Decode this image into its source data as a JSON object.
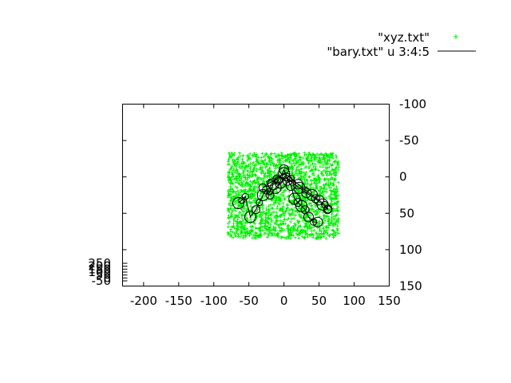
{
  "chart_data": {
    "type": "scatter",
    "title": "",
    "xlabel": "",
    "ylabel": "",
    "xlim": [
      -230,
      150
    ],
    "ylim": [
      -100,
      150
    ],
    "y_axis_side": "right",
    "y_reversed": true,
    "grid": false,
    "legend_position": "top-right",
    "x_ticks": [
      {
        "value": -200,
        "label": "-200"
      },
      {
        "value": -150,
        "label": "-150"
      },
      {
        "value": -100,
        "label": "-100"
      },
      {
        "value": -50,
        "label": "-50"
      },
      {
        "value": 0,
        "label": "0"
      },
      {
        "value": 50,
        "label": "50"
      },
      {
        "value": 100,
        "label": "100"
      },
      {
        "value": 150,
        "label": "150"
      }
    ],
    "y_ticks": [
      {
        "value": -100,
        "label": "-100"
      },
      {
        "value": -50,
        "label": "-50"
      },
      {
        "value": 0,
        "label": "0"
      },
      {
        "value": 50,
        "label": "50"
      },
      {
        "value": 100,
        "label": "100"
      },
      {
        "value": 150,
        "label": "150"
      }
    ],
    "z_ticks_labels": [
      "-50",
      "0",
      "50",
      "100",
      "150",
      "200",
      "250"
    ],
    "series": [
      {
        "name": "\"xyz.txt\"",
        "style": "points",
        "marker": "plus",
        "color": "#00ee00",
        "region": {
          "x": [
            -80,
            78
          ],
          "y": [
            -33,
            85
          ]
        },
        "estimated_point_count": 2500
      },
      {
        "name": "\"bary.txt\" u 3:4:5",
        "style": "line-with-circles",
        "color": "#000000",
        "points": [
          {
            "x": -65,
            "y": 36
          },
          {
            "x": -60,
            "y": 32
          },
          {
            "x": -55,
            "y": 27
          },
          {
            "x": -48,
            "y": 55
          },
          {
            "x": -40,
            "y": 45
          },
          {
            "x": -35,
            "y": 35
          },
          {
            "x": -30,
            "y": 25
          },
          {
            "x": -25,
            "y": 18
          },
          {
            "x": -20,
            "y": 20
          },
          {
            "x": -15,
            "y": 10
          },
          {
            "x": -8,
            "y": 5
          },
          {
            "x": 0,
            "y": -10
          },
          {
            "x": 5,
            "y": 5
          },
          {
            "x": 10,
            "y": 12
          },
          {
            "x": 15,
            "y": 30
          },
          {
            "x": 20,
            "y": 35
          },
          {
            "x": 25,
            "y": 40
          },
          {
            "x": 30,
            "y": 45
          },
          {
            "x": 35,
            "y": 55
          },
          {
            "x": 42,
            "y": 62
          },
          {
            "x": 48,
            "y": 62
          }
        ],
        "branches": [
          {
            "points": [
              {
                "x": -30,
                "y": 15
              },
              {
                "x": -20,
                "y": 8
              },
              {
                "x": -10,
                "y": 3
              },
              {
                "x": 0,
                "y": -5
              },
              {
                "x": 10,
                "y": 2
              },
              {
                "x": 20,
                "y": 10
              },
              {
                "x": 30,
                "y": 18
              },
              {
                "x": 40,
                "y": 25
              },
              {
                "x": 50,
                "y": 32
              },
              {
                "x": 58,
                "y": 38
              },
              {
                "x": 62,
                "y": 45
              }
            ]
          },
          {
            "points": [
              {
                "x": -20,
                "y": 25
              },
              {
                "x": -12,
                "y": 15
              },
              {
                "x": -5,
                "y": 8
              },
              {
                "x": 3,
                "y": 0
              },
              {
                "x": 12,
                "y": 8
              },
              {
                "x": 22,
                "y": 15
              },
              {
                "x": 32,
                "y": 22
              },
              {
                "x": 45,
                "y": 30
              },
              {
                "x": 55,
                "y": 38
              },
              {
                "x": 63,
                "y": 44
              }
            ]
          }
        ]
      }
    ]
  }
}
